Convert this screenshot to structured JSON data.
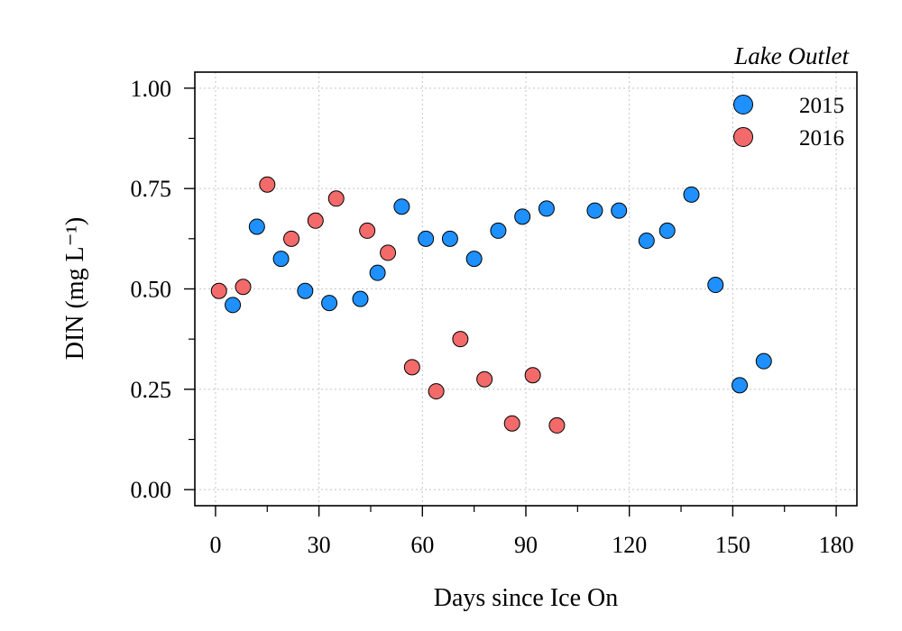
{
  "chart_data": {
    "type": "scatter",
    "title": "Lake Outlet",
    "xlabel": "Days since Ice On",
    "ylabel": "DIN (mg L⁻¹)",
    "xlim": [
      -6,
      186
    ],
    "ylim": [
      -0.04,
      1.04
    ],
    "xticks": [
      0,
      30,
      60,
      90,
      120,
      150,
      180
    ],
    "xtick_labels": [
      "0",
      "30",
      "60",
      "90",
      "120",
      "150",
      "180"
    ],
    "yticks": [
      0.0,
      0.25,
      0.5,
      0.75,
      1.0
    ],
    "ytick_labels": [
      "0.00",
      "0.25",
      "0.50",
      "0.75",
      "1.00"
    ],
    "grid": true,
    "legend_position": "top-right",
    "series": [
      {
        "name": "2015",
        "color": "#1e90ff",
        "x": [
          5,
          12,
          19,
          26,
          33,
          42,
          47,
          54,
          61,
          68,
          75,
          82,
          89,
          96,
          110,
          117,
          125,
          131,
          138,
          145,
          152,
          159
        ],
        "y": [
          0.46,
          0.655,
          0.575,
          0.495,
          0.465,
          0.475,
          0.54,
          0.705,
          0.625,
          0.625,
          0.575,
          0.645,
          0.68,
          0.7,
          0.695,
          0.695,
          0.62,
          0.645,
          0.735,
          0.51,
          0.26,
          0.32
        ]
      },
      {
        "name": "2016",
        "color": "#f26a6a",
        "x": [
          1,
          8,
          15,
          22,
          29,
          35,
          44,
          50,
          57,
          64,
          71,
          78,
          86,
          92,
          99
        ],
        "y": [
          0.495,
          0.505,
          0.76,
          0.625,
          0.67,
          0.725,
          0.645,
          0.59,
          0.305,
          0.245,
          0.375,
          0.275,
          0.165,
          0.285,
          0.16
        ]
      }
    ]
  }
}
